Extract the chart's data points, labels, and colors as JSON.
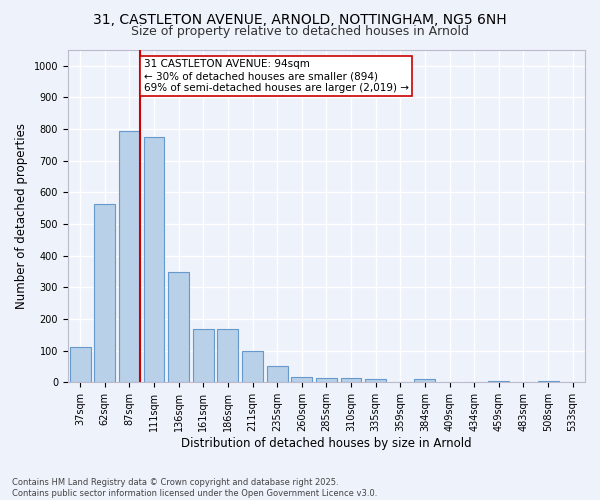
{
  "title_line1": "31, CASTLETON AVENUE, ARNOLD, NOTTINGHAM, NG5 6NH",
  "title_line2": "Size of property relative to detached houses in Arnold",
  "xlabel": "Distribution of detached houses by size in Arnold",
  "ylabel": "Number of detached properties",
  "categories": [
    "37sqm",
    "62sqm",
    "87sqm",
    "111sqm",
    "136sqm",
    "161sqm",
    "186sqm",
    "211sqm",
    "235sqm",
    "260sqm",
    "285sqm",
    "310sqm",
    "335sqm",
    "359sqm",
    "384sqm",
    "409sqm",
    "434sqm",
    "459sqm",
    "483sqm",
    "508sqm",
    "533sqm"
  ],
  "values": [
    112,
    562,
    795,
    775,
    350,
    168,
    168,
    98,
    52,
    18,
    13,
    13,
    12,
    0,
    10,
    0,
    0,
    5,
    0,
    5,
    0
  ],
  "bar_color": "#b8d0e8",
  "bar_edge_color": "#6699cc",
  "vline_x_index": 2,
  "vline_color": "#cc0000",
  "annotation_text": "31 CASTLETON AVENUE: 94sqm\n← 30% of detached houses are smaller (894)\n69% of semi-detached houses are larger (2,019) →",
  "annotation_box_color": "#ffffff",
  "annotation_box_edge_color": "#cc0000",
  "ylim": [
    0,
    1050
  ],
  "yticks": [
    0,
    100,
    200,
    300,
    400,
    500,
    600,
    700,
    800,
    900,
    1000
  ],
  "background_color": "#eef2fb",
  "grid_color": "#ffffff",
  "footer": "Contains HM Land Registry data © Crown copyright and database right 2025.\nContains public sector information licensed under the Open Government Licence v3.0.",
  "title_fontsize": 10,
  "subtitle_fontsize": 9,
  "axis_label_fontsize": 8.5,
  "tick_fontsize": 7,
  "annotation_fontsize": 7.5,
  "footer_fontsize": 6
}
